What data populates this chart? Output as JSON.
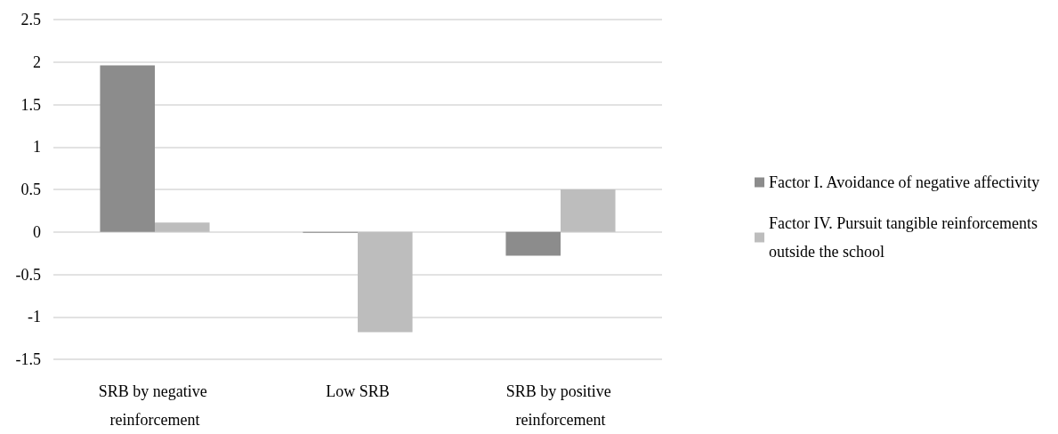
{
  "chart_data": {
    "type": "bar",
    "categories": [
      "SRB by negative reinforcement",
      "Low SRB",
      "SRB by positive reinforcement"
    ],
    "series": [
      {
        "name": "Factor I. Avoidance of negative affectivity",
        "color": "#8c8c8c",
        "values": [
          1.96,
          -0.01,
          -0.28
        ]
      },
      {
        "name": "Factor IV. Pursuit tangible reinforcements outside the school",
        "color": "#bdbdbd",
        "values": [
          0.11,
          -1.18,
          0.5
        ]
      }
    ],
    "ylim": [
      -1.5,
      2.5
    ],
    "yticks": [
      -1.5,
      -1,
      -0.5,
      0,
      0.5,
      1,
      1.5,
      2,
      2.5
    ],
    "grid": "y",
    "legend": "right"
  }
}
